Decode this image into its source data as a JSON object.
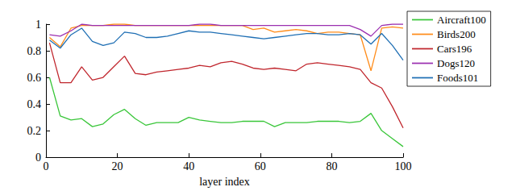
{
  "chart_data": {
    "type": "line",
    "x_label": "layer index",
    "x": [
      1,
      4,
      7,
      10,
      13,
      16,
      19,
      22,
      25,
      28,
      31,
      34,
      37,
      40,
      43,
      46,
      49,
      52,
      55,
      58,
      61,
      64,
      67,
      70,
      73,
      76,
      79,
      82,
      85,
      88,
      91,
      94,
      97,
      100
    ],
    "series": [
      {
        "name": "Aircraft100",
        "color": "#39c639",
        "values": [
          0.6,
          0.31,
          0.28,
          0.29,
          0.23,
          0.25,
          0.32,
          0.36,
          0.29,
          0.24,
          0.26,
          0.26,
          0.26,
          0.3,
          0.28,
          0.27,
          0.26,
          0.26,
          0.27,
          0.27,
          0.27,
          0.23,
          0.26,
          0.26,
          0.26,
          0.27,
          0.27,
          0.27,
          0.26,
          0.27,
          0.33,
          0.2,
          0.14,
          0.08
        ]
      },
      {
        "name": "Birds200",
        "color": "#ff8c1a",
        "values": [
          0.9,
          0.83,
          0.97,
          0.99,
          0.99,
          0.99,
          1.0,
          1.0,
          0.99,
          0.99,
          0.99,
          0.99,
          0.99,
          0.99,
          0.99,
          0.99,
          0.99,
          0.99,
          0.99,
          0.96,
          0.97,
          0.94,
          0.95,
          0.96,
          0.95,
          0.93,
          0.94,
          0.94,
          0.93,
          0.92,
          0.65,
          0.97,
          0.98,
          0.97
        ]
      },
      {
        "name": "Cars196",
        "color": "#c0262d",
        "values": [
          0.86,
          0.56,
          0.56,
          0.68,
          0.58,
          0.6,
          0.68,
          0.76,
          0.63,
          0.62,
          0.64,
          0.65,
          0.66,
          0.67,
          0.69,
          0.68,
          0.71,
          0.72,
          0.7,
          0.67,
          0.66,
          0.67,
          0.66,
          0.65,
          0.7,
          0.71,
          0.7,
          0.69,
          0.68,
          0.66,
          0.56,
          0.52,
          0.38,
          0.22
        ]
      },
      {
        "name": "Dogs120",
        "color": "#9b30b0",
        "values": [
          0.92,
          0.91,
          0.95,
          1.0,
          0.99,
          0.99,
          0.99,
          0.99,
          0.99,
          0.99,
          0.99,
          0.99,
          0.99,
          0.99,
          1.0,
          1.0,
          0.99,
          0.99,
          0.99,
          0.99,
          0.99,
          0.99,
          0.99,
          0.99,
          0.99,
          0.99,
          0.99,
          0.99,
          0.99,
          0.96,
          0.91,
          0.99,
          1.0,
          1.0
        ]
      },
      {
        "name": "Foods101",
        "color": "#1f6fb4",
        "values": [
          0.88,
          0.82,
          0.92,
          0.97,
          0.87,
          0.84,
          0.86,
          0.94,
          0.93,
          0.9,
          0.9,
          0.91,
          0.93,
          0.95,
          0.94,
          0.94,
          0.93,
          0.92,
          0.91,
          0.9,
          0.89,
          0.9,
          0.91,
          0.92,
          0.93,
          0.93,
          0.92,
          0.92,
          0.93,
          0.92,
          0.85,
          0.93,
          0.84,
          0.73
        ]
      }
    ],
    "xlim": [
      0,
      100
    ],
    "xticks": [
      0,
      20,
      40,
      60,
      80,
      100
    ],
    "ylim": [
      0,
      1
    ],
    "yticks": [
      0,
      0.2,
      0.4,
      0.6,
      0.8,
      1
    ],
    "grid": false,
    "legend": "right",
    "marker": "none",
    "line_style": "solid"
  }
}
